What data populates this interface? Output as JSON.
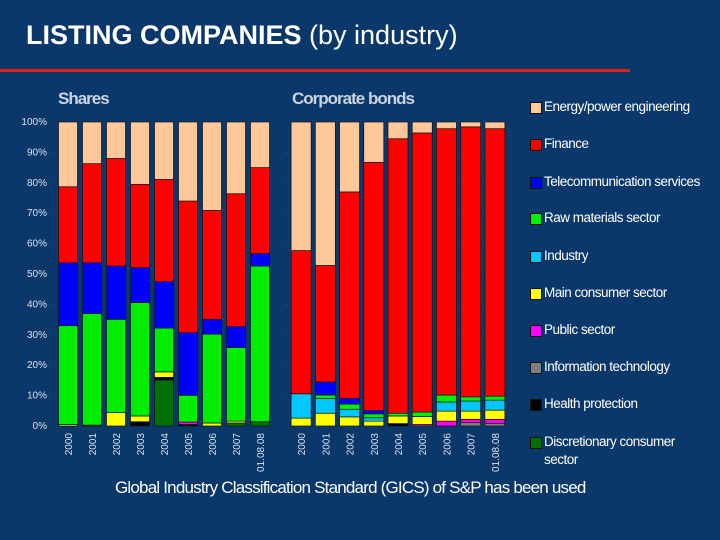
{
  "title": {
    "main": "LISTING COMPANIES",
    "sub": "(by industry)"
  },
  "footer": "Global Industry Classification Standard (GICS) of S&P has been used",
  "legend": [
    {
      "label": "Energy/power engineering",
      "color": "#ffc899"
    },
    {
      "label": "Finance",
      "color": "#ff0000"
    },
    {
      "label": "Telecommunication services",
      "color": "#0000ff"
    },
    {
      "label": "Raw materials sector",
      "color": "#00ee00"
    },
    {
      "label": "Industry",
      "color": "#00c8ff"
    },
    {
      "label": "Main consumer sector",
      "color": "#ffff00"
    },
    {
      "label": "Public sector",
      "color": "#ff00ff"
    },
    {
      "label": "Information technology",
      "color": "#808080"
    },
    {
      "label": "Health protection",
      "color": "#000000"
    },
    {
      "label": "Discretionary consumer sector",
      "color": "#007000"
    }
  ],
  "chart_data": [
    {
      "type": "bar",
      "stacked": true,
      "title": "Shares",
      "categories": [
        "2000",
        "2001",
        "2002",
        "2003",
        "2004",
        "2005",
        "2006",
        "2007",
        "01.08.08"
      ],
      "yticks": [
        "0%",
        "10%",
        "20%",
        "30%",
        "40%",
        "50%",
        "60%",
        "70%",
        "80%",
        "90%",
        "100%"
      ],
      "ylim": [
        0,
        100
      ],
      "series": [
        {
          "name": "Discretionary consumer sector",
          "values": [
            0,
            0.3,
            0,
            0,
            15.1,
            0,
            0,
            1.0,
            1.4
          ]
        },
        {
          "name": "Health protection",
          "values": [
            0,
            0,
            0,
            1.4,
            0.9,
            0.5,
            0,
            0,
            0
          ]
        },
        {
          "name": "Information technology",
          "values": [
            0,
            0,
            0,
            0,
            0,
            0,
            0,
            0,
            0
          ]
        },
        {
          "name": "Public sector",
          "values": [
            0,
            0,
            0,
            0,
            0,
            0.8,
            0,
            0,
            0
          ]
        },
        {
          "name": "Main consumer sector",
          "values": [
            0.5,
            0,
            4.4,
            1.9,
            1.8,
            0,
            1.0,
            0.6,
            0
          ]
        },
        {
          "name": "Industry",
          "values": [
            0,
            0,
            0,
            0,
            0,
            0,
            0,
            0,
            0
          ]
        },
        {
          "name": "Raw materials sector",
          "values": [
            32.5,
            36.7,
            30.7,
            37.3,
            14.4,
            8.8,
            29.2,
            24.2,
            51.2
          ]
        },
        {
          "name": "Telecommunication services",
          "values": [
            20.7,
            16.7,
            17.5,
            11.5,
            15.3,
            20.6,
            4.9,
            6.9,
            4.1
          ]
        },
        {
          "name": "Finance",
          "values": [
            25.0,
            32.6,
            35.4,
            27.4,
            33.6,
            43.3,
            35.8,
            43.7,
            28.3
          ]
        },
        {
          "name": "Energy/power engineering",
          "values": [
            21.3,
            14.0,
            12.0,
            20.5,
            18.9,
            26.0,
            29.1,
            23.6,
            15.0
          ]
        }
      ]
    },
    {
      "type": "bar",
      "stacked": true,
      "title": "Corporate bonds",
      "categories": [
        "2000",
        "2001",
        "2002",
        "2003",
        "2004",
        "2005",
        "2006",
        "2007",
        "01.08.08"
      ],
      "ylim": [
        0,
        100
      ],
      "series": [
        {
          "name": "Discretionary consumer sector",
          "values": [
            0,
            0,
            0,
            0,
            0,
            0,
            0,
            0,
            0
          ]
        },
        {
          "name": "Health protection",
          "values": [
            0,
            0,
            0,
            0,
            0.8,
            0,
            0,
            0,
            0
          ]
        },
        {
          "name": "Information technology",
          "values": [
            0,
            0,
            0,
            0,
            0,
            0,
            0,
            1.1,
            0.9
          ]
        },
        {
          "name": "Public sector",
          "values": [
            0,
            0,
            0,
            0,
            0,
            0.5,
            1.6,
            1.1,
            1.3
          ]
        },
        {
          "name": "Main consumer sector",
          "values": [
            2.6,
            4.2,
            3.0,
            1.6,
            2.5,
            2.6,
            3.3,
            2.7,
            3.0
          ]
        },
        {
          "name": "Industry",
          "values": [
            8.0,
            4.8,
            2.5,
            1.1,
            0,
            0,
            3.0,
            3.3,
            3.3
          ]
        },
        {
          "name": "Raw materials sector",
          "values": [
            0,
            1.2,
            1.7,
            1.3,
            0.9,
            1.5,
            2.3,
            1.4,
            1.3
          ]
        },
        {
          "name": "Telecommunication services",
          "values": [
            0,
            4.3,
            1.9,
            1.1,
            0,
            0,
            0,
            0,
            0
          ]
        },
        {
          "name": "Finance",
          "values": [
            47.1,
            38.3,
            67.9,
            81.6,
            90.3,
            91.8,
            87.6,
            88.8,
            88.0
          ]
        },
        {
          "name": "Energy/power engineering",
          "values": [
            42.3,
            47.2,
            23.0,
            13.3,
            5.5,
            3.6,
            2.2,
            1.6,
            2.2
          ]
        }
      ]
    }
  ]
}
